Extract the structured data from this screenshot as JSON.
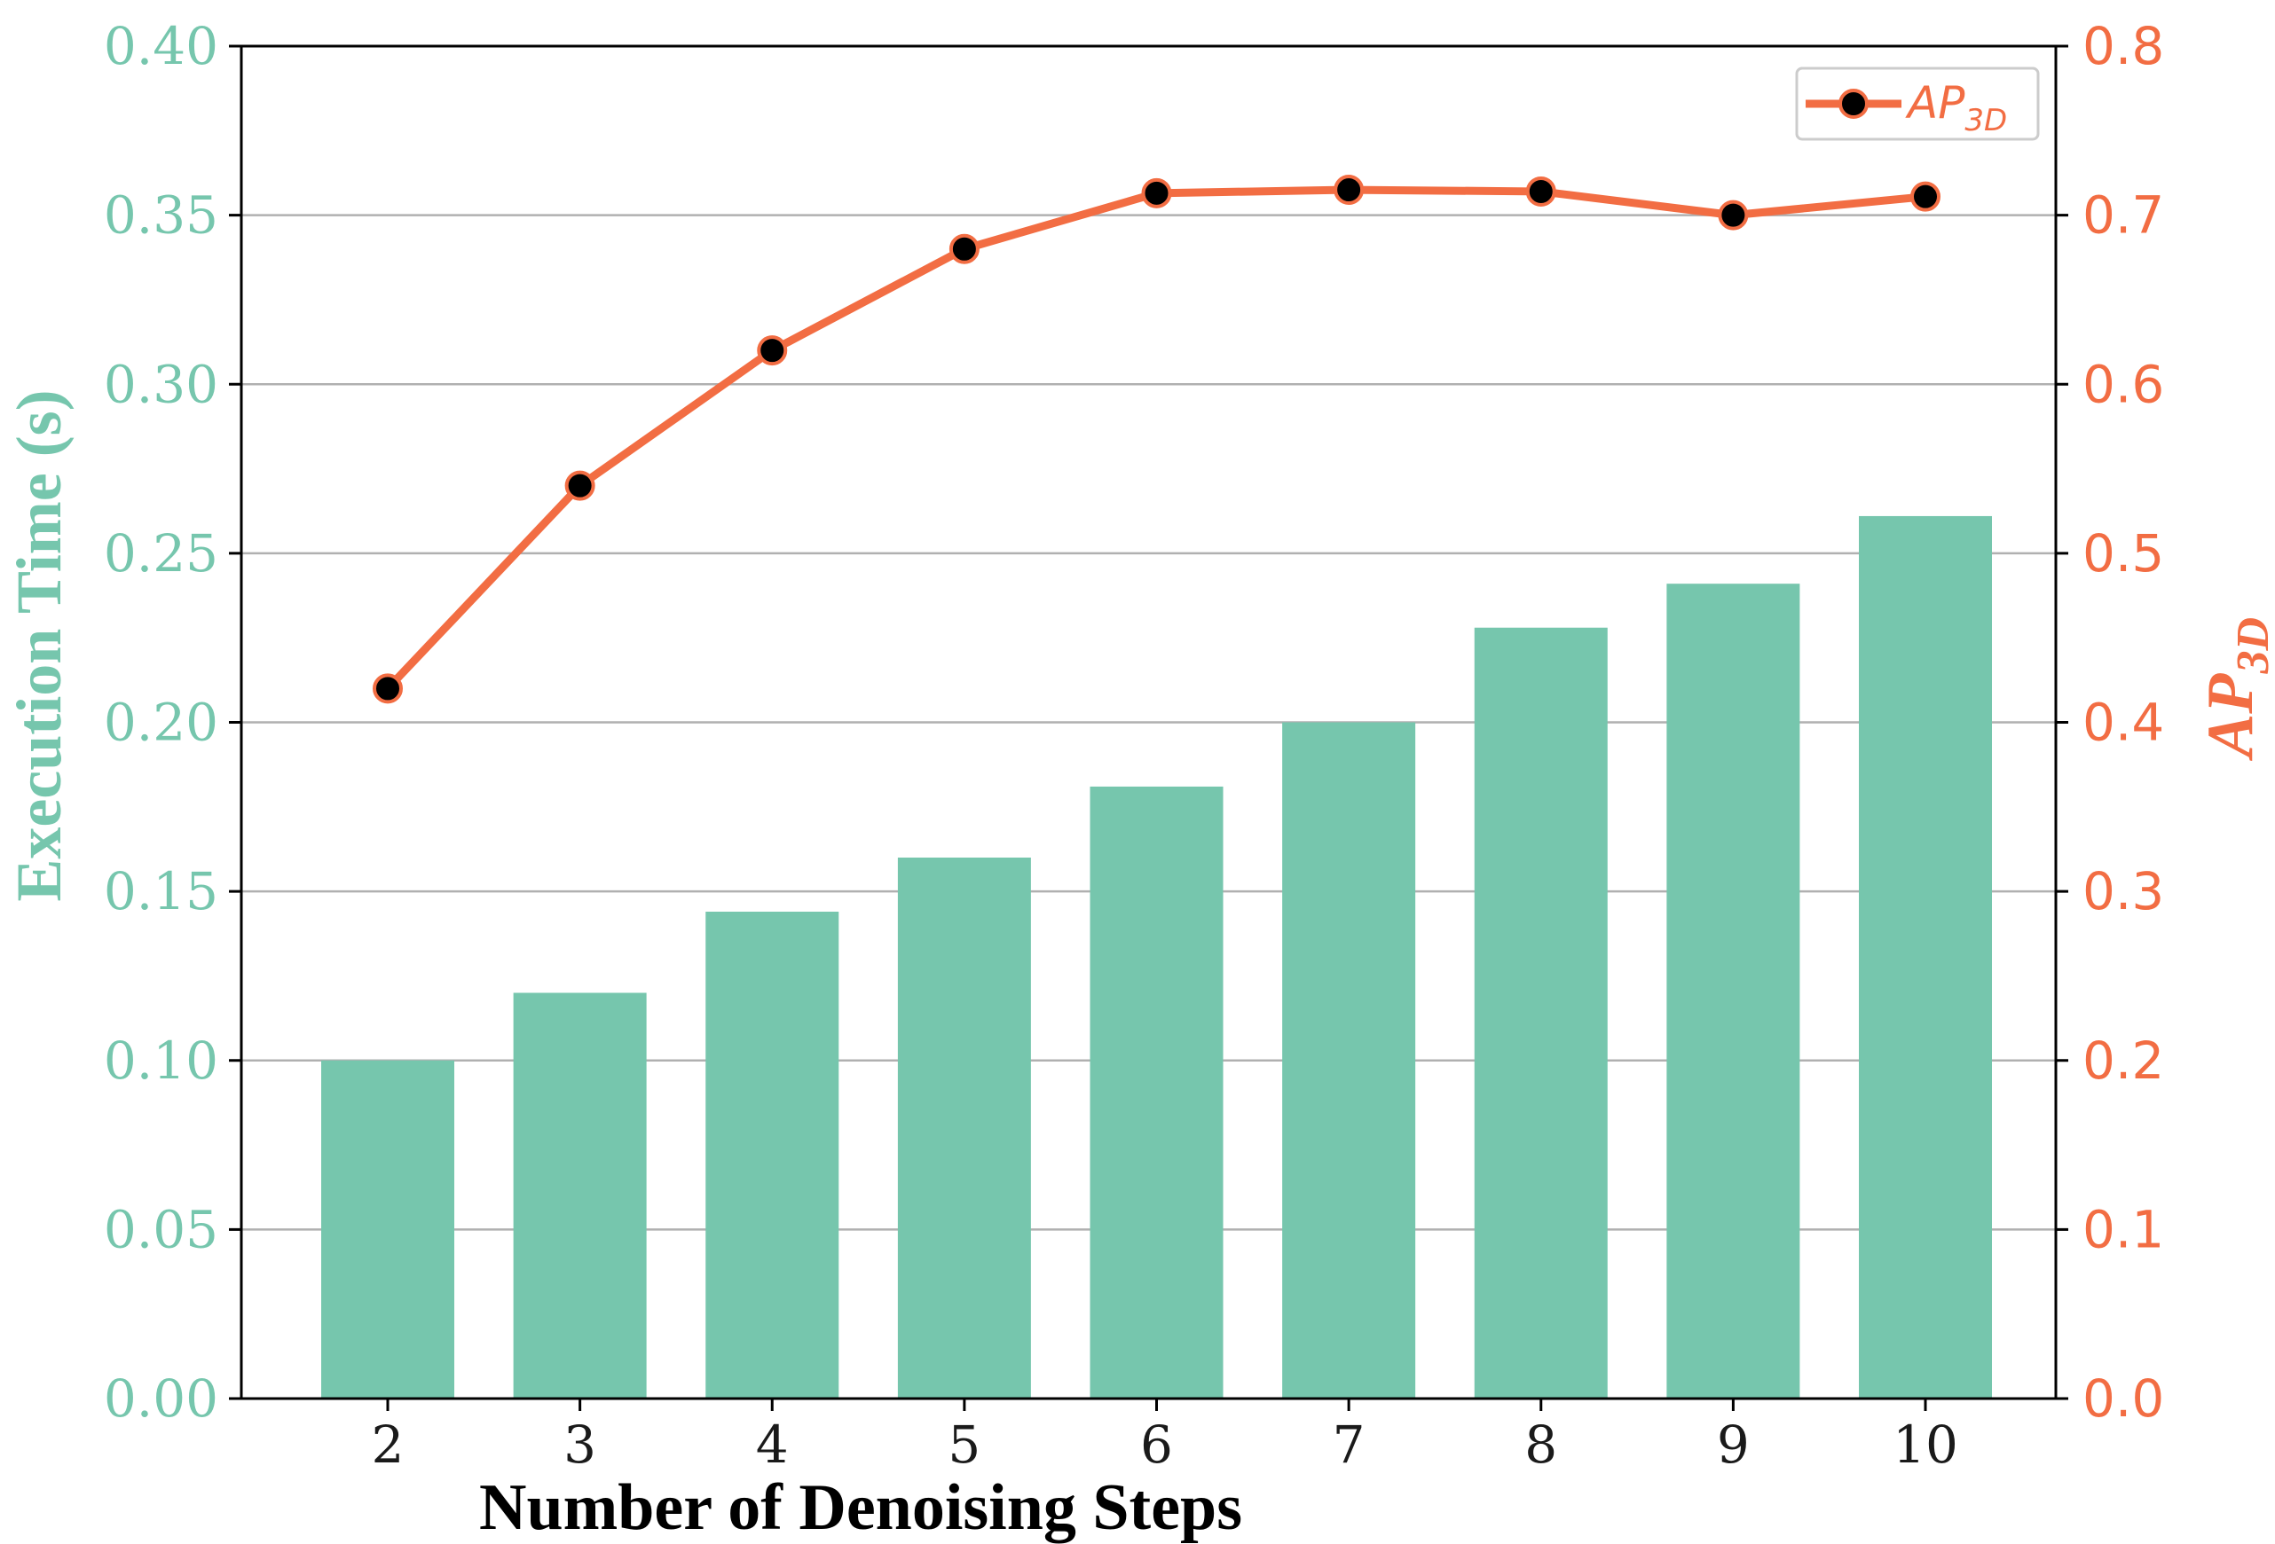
{
  "colors": {
    "bars": "#76c6ad",
    "line": "#f26d43",
    "marker": "#000000",
    "grid": "#b0b0b0",
    "axis": "#000000"
  },
  "chart_data": {
    "type": "bar",
    "xlabel": "Number of Denoising Steps",
    "categories": [
      "2",
      "3",
      "4",
      "5",
      "6",
      "7",
      "8",
      "9",
      "10"
    ],
    "grid": true,
    "legend_position": "top-right",
    "y_left": {
      "label": "Execution Time (s)",
      "lim": [
        0,
        0.4
      ],
      "ticks": [
        "0.00",
        "0.05",
        "0.10",
        "0.15",
        "0.20",
        "0.25",
        "0.30",
        "0.35",
        "0.40"
      ]
    },
    "y_right": {
      "label_main": "AP",
      "label_sub": "3D",
      "lim": [
        0,
        0.8
      ],
      "ticks": [
        "0.0",
        "0.1",
        "0.2",
        "0.3",
        "0.4",
        "0.5",
        "0.6",
        "0.7",
        "0.8"
      ]
    },
    "series": [
      {
        "type": "bar",
        "axis": "left",
        "values": [
          0.1,
          0.12,
          0.144,
          0.16,
          0.181,
          0.2,
          0.228,
          0.241,
          0.261
        ]
      },
      {
        "type": "line",
        "axis": "right",
        "name_main": "AP",
        "name_sub": "3D",
        "values": [
          0.42,
          0.54,
          0.62,
          0.68,
          0.713,
          0.715,
          0.714,
          0.7,
          0.711
        ]
      }
    ]
  }
}
